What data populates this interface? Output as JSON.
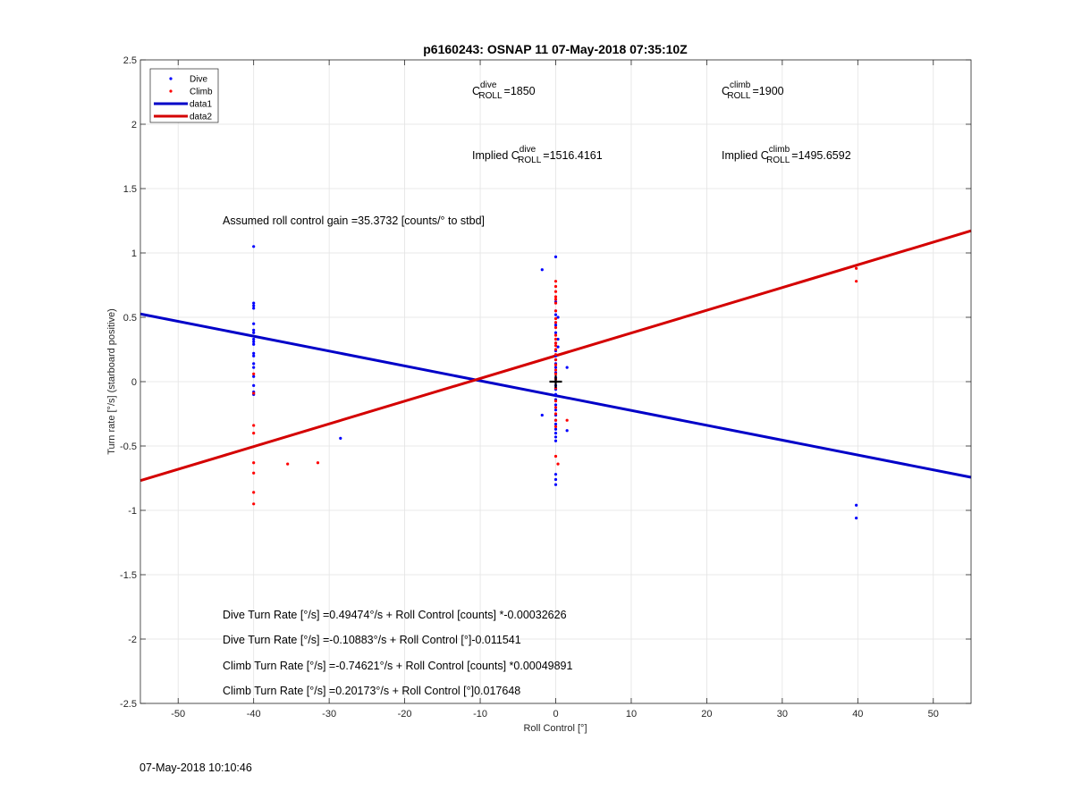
{
  "chart_data": {
    "type": "scatter",
    "title": "p6160243: OSNAP 11 07-May-2018 07:35:10Z",
    "xlabel": "Roll Control [°]",
    "ylabel": "Turn rate [°/s] (starboard positive)",
    "xlim": [
      -55,
      55
    ],
    "ylim": [
      -2.5,
      2.5
    ],
    "xticks": [
      -50,
      -40,
      -30,
      -20,
      -10,
      0,
      10,
      20,
      30,
      40,
      50
    ],
    "yticks": [
      -2.5,
      -2,
      -1.5,
      -1,
      -0.5,
      0,
      0.5,
      1,
      1.5,
      2,
      2.5
    ],
    "grid": true,
    "legend": {
      "position": "top-left",
      "entries": [
        {
          "label": "Dive",
          "kind": "marker",
          "color": "#0000ff"
        },
        {
          "label": "Climb",
          "kind": "marker",
          "color": "#ff0000"
        },
        {
          "label": "data1",
          "kind": "line",
          "color": "#0000c8"
        },
        {
          "label": "data2",
          "kind": "line",
          "color": "#d40000"
        }
      ]
    },
    "series": [
      {
        "name": "Dive",
        "kind": "scatter",
        "color": "#0000ff",
        "points": [
          [
            -40,
            1.05
          ],
          [
            -40,
            0.61
          ],
          [
            -40,
            0.59
          ],
          [
            -40,
            0.57
          ],
          [
            -40,
            0.45
          ],
          [
            -40,
            0.4
          ],
          [
            -40,
            0.38
          ],
          [
            -40,
            0.33
          ],
          [
            -40,
            0.31
          ],
          [
            -40,
            0.29
          ],
          [
            -40,
            0.22
          ],
          [
            -40,
            0.2
          ],
          [
            -40,
            0.14
          ],
          [
            -40,
            0.11
          ],
          [
            -40,
            0.04
          ],
          [
            -40,
            -0.03
          ],
          [
            -40,
            -0.08
          ],
          [
            -40,
            -0.1
          ],
          [
            -28.5,
            -0.44
          ],
          [
            -1.8,
            0.87
          ],
          [
            0,
            0.97
          ],
          [
            0,
            0.62
          ],
          [
            0,
            0.55
          ],
          [
            0,
            0.52
          ],
          [
            0.3,
            0.5
          ],
          [
            0,
            0.44
          ],
          [
            0,
            0.38
          ],
          [
            0.3,
            0.33
          ],
          [
            0,
            0.3
          ],
          [
            0.3,
            0.27
          ],
          [
            0,
            0.24
          ],
          [
            0,
            0.2
          ],
          [
            0,
            0.17
          ],
          [
            0,
            0.14
          ],
          [
            0,
            0.11
          ],
          [
            0,
            0.07
          ],
          [
            0,
            0.03
          ],
          [
            0,
            0.0
          ],
          [
            0,
            -0.03
          ],
          [
            0,
            -0.06
          ],
          [
            0,
            -0.1
          ],
          [
            0,
            -0.14
          ],
          [
            0,
            -0.18
          ],
          [
            0,
            -0.22
          ],
          [
            0,
            -0.26
          ],
          [
            0,
            -0.3
          ],
          [
            0,
            -0.33
          ],
          [
            0,
            -0.37
          ],
          [
            0,
            -0.4
          ],
          [
            0,
            -0.43
          ],
          [
            0,
            -0.46
          ],
          [
            0,
            -0.72
          ],
          [
            0,
            -0.76
          ],
          [
            0,
            -0.8
          ],
          [
            -1.8,
            -0.26
          ],
          [
            1.5,
            0.11
          ],
          [
            1.5,
            -0.38
          ],
          [
            39.8,
            -0.96
          ],
          [
            39.8,
            -1.06
          ]
        ]
      },
      {
        "name": "Climb",
        "kind": "scatter",
        "color": "#ff0000",
        "points": [
          [
            -40,
            0.06
          ],
          [
            -40,
            -0.09
          ],
          [
            -40,
            -0.34
          ],
          [
            -40,
            -0.4
          ],
          [
            -40,
            -0.63
          ],
          [
            -40,
            -0.71
          ],
          [
            -40,
            -0.86
          ],
          [
            -40,
            -0.95
          ],
          [
            -35.5,
            -0.64
          ],
          [
            -31.5,
            -0.63
          ],
          [
            0,
            0.78
          ],
          [
            0,
            0.74
          ],
          [
            0,
            0.7
          ],
          [
            0,
            0.66
          ],
          [
            0,
            0.64
          ],
          [
            0,
            0.61
          ],
          [
            0,
            0.55
          ],
          [
            0,
            0.49
          ],
          [
            0,
            0.46
          ],
          [
            0,
            0.42
          ],
          [
            0,
            0.36
          ],
          [
            0,
            0.33
          ],
          [
            0,
            0.3
          ],
          [
            0,
            0.28
          ],
          [
            0,
            0.25
          ],
          [
            0,
            0.21
          ],
          [
            0,
            0.17
          ],
          [
            0,
            0.13
          ],
          [
            0,
            0.09
          ],
          [
            0,
            0.06
          ],
          [
            0,
            0.02
          ],
          [
            0,
            -0.05
          ],
          [
            0,
            -0.15
          ],
          [
            0,
            -0.2
          ],
          [
            0,
            -0.25
          ],
          [
            0,
            -0.3
          ],
          [
            0,
            -0.35
          ],
          [
            0,
            -0.58
          ],
          [
            0.3,
            -0.64
          ],
          [
            1.5,
            -0.3
          ],
          [
            39.8,
            0.88
          ],
          [
            39.8,
            0.78
          ]
        ]
      },
      {
        "name": "data1",
        "kind": "line",
        "color": "#0000c8",
        "points": [
          [
            -55,
            0.526
          ],
          [
            55,
            -0.743
          ]
        ]
      },
      {
        "name": "data2",
        "kind": "line",
        "color": "#d40000",
        "points": [
          [
            -55,
            -0.769
          ],
          [
            55,
            1.172
          ]
        ]
      }
    ],
    "annotations": {
      "croll_dive": {
        "base": "C",
        "sub": "ROLL",
        "sup": "dive",
        "value": "=1850"
      },
      "croll_climb": {
        "base": "C",
        "sub": "ROLL",
        "sup": "climb",
        "value": "=1900"
      },
      "implied_dive": {
        "prefix": "Implied C",
        "sub": "ROLL",
        "sup": "dive",
        "value": "=1516.4161"
      },
      "implied_climb": {
        "prefix": "Implied C",
        "sub": "ROLL",
        "sup": "climb",
        "value": "=1495.6592"
      },
      "gain": "Assumed roll control gain =35.3732 [counts/° to stbd]",
      "eq_dive_counts": "Dive Turn Rate [°/s] =0.49474°/s + Roll Control [counts] *-0.00032626",
      "eq_dive_deg": "Dive Turn Rate [°/s] =-0.10883°/s + Roll Control [°]-0.011541",
      "eq_climb_counts": "Climb Turn Rate [°/s] =-0.74621°/s + Roll Control [counts] *0.00049891",
      "eq_climb_deg": "Climb Turn Rate [°/s] =0.20173°/s + Roll Control [°]0.017648"
    },
    "marker": {
      "symbol": "+",
      "x": 0,
      "y": 0
    }
  },
  "footer_timestamp": "07-May-2018 10:10:46"
}
